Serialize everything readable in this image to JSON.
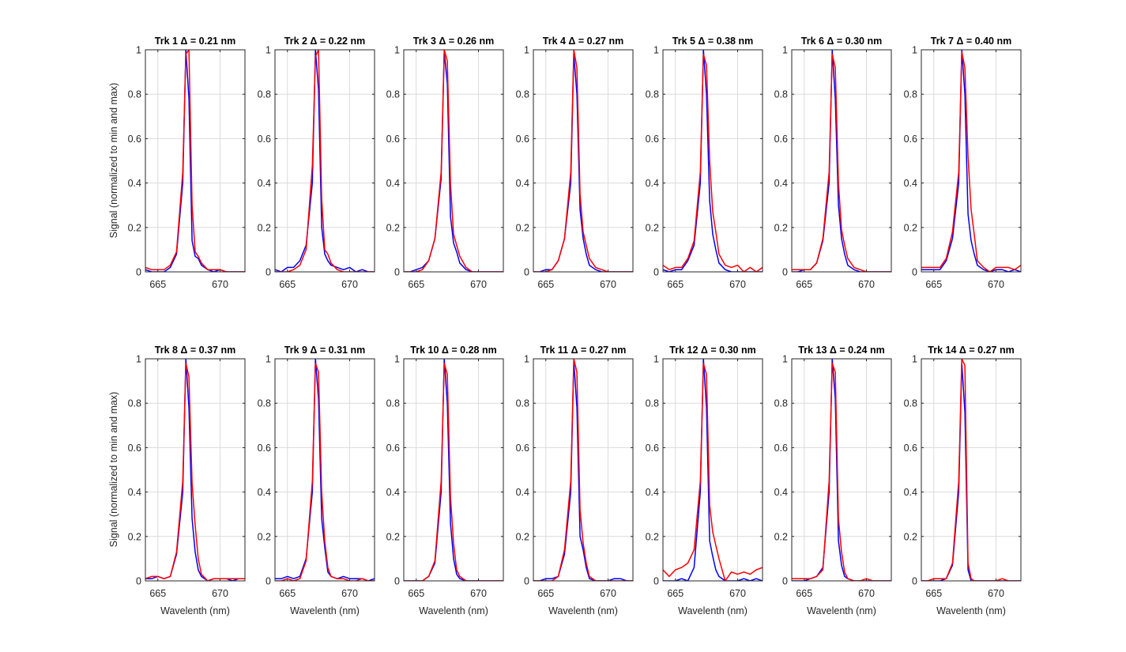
{
  "figure": {
    "ylabel": "Signal (normalized to min and max)",
    "xlabel": "Wavelenth (nm)"
  },
  "colors": {
    "blue": "#0000ff",
    "red": "#ff0000",
    "grid": "#dcdcdc",
    "axis": "#262626"
  },
  "chart_data": {
    "type": "line",
    "grid": true,
    "xlim": [
      664,
      672
    ],
    "ylim": [
      0,
      1
    ],
    "xticks": [
      665,
      670
    ],
    "yticks": [
      0,
      0.2,
      0.4,
      0.6,
      0.8,
      1
    ],
    "xticklabels": [
      "665",
      "670"
    ],
    "yticklabels": [
      "0",
      "0.2",
      "0.4",
      "0.6",
      "0.8",
      "1"
    ],
    "x": [
      664.0,
      664.5,
      665.0,
      665.5,
      666.0,
      666.5,
      667.0,
      667.25,
      667.5,
      667.75,
      668.0,
      668.25,
      668.5,
      669.0,
      669.5,
      670.0,
      670.5,
      671.0,
      671.5,
      672.0
    ],
    "panels": [
      {
        "title": "Trk 1 Δ = 0.21 nm",
        "blue": [
          0.01,
          0.0,
          0.0,
          0.0,
          0.02,
          0.08,
          0.4,
          1.0,
          0.78,
          0.14,
          0.07,
          0.06,
          0.03,
          0.01,
          0.0,
          0.01,
          0.0,
          0.0,
          0.0,
          0.0
        ],
        "red": [
          0.02,
          0.01,
          0.01,
          0.01,
          0.03,
          0.09,
          0.45,
          0.98,
          1.0,
          0.3,
          0.09,
          0.07,
          0.04,
          0.01,
          0.01,
          0.01,
          0.0,
          0.0,
          0.0,
          0.0
        ]
      },
      {
        "title": "Trk 2 Δ = 0.22 nm",
        "blue": [
          0.01,
          0.0,
          0.02,
          0.02,
          0.05,
          0.12,
          0.4,
          1.0,
          0.82,
          0.2,
          0.08,
          0.05,
          0.03,
          0.02,
          0.01,
          0.02,
          0.0,
          0.01,
          0.0,
          0.0
        ],
        "red": [
          0.0,
          0.0,
          0.0,
          0.01,
          0.03,
          0.1,
          0.48,
          0.97,
          1.0,
          0.33,
          0.1,
          0.08,
          0.04,
          0.01,
          0.0,
          0.0,
          0.0,
          0.0,
          0.0,
          0.0
        ]
      },
      {
        "title": "Trk 3 Δ = 0.26 nm",
        "blue": [
          0.0,
          0.0,
          0.01,
          0.02,
          0.05,
          0.15,
          0.42,
          0.99,
          0.85,
          0.25,
          0.13,
          0.09,
          0.04,
          0.01,
          0.0,
          0.0,
          0.0,
          0.0,
          0.0,
          0.0
        ],
        "red": [
          0.0,
          0.0,
          0.0,
          0.01,
          0.05,
          0.15,
          0.45,
          1.0,
          0.95,
          0.4,
          0.17,
          0.12,
          0.07,
          0.02,
          0.0,
          0.0,
          0.0,
          0.0,
          0.0,
          0.0
        ]
      },
      {
        "title": "Trk 4 Δ = 0.27 nm",
        "blue": [
          0.0,
          0.0,
          0.01,
          0.01,
          0.05,
          0.15,
          0.4,
          0.98,
          0.8,
          0.28,
          0.15,
          0.08,
          0.03,
          0.01,
          0.0,
          0.0,
          0.0,
          0.0,
          0.0,
          0.0
        ],
        "red": [
          0.0,
          0.0,
          0.0,
          0.01,
          0.05,
          0.15,
          0.45,
          1.0,
          0.92,
          0.35,
          0.18,
          0.12,
          0.06,
          0.02,
          0.01,
          0.0,
          0.0,
          0.0,
          0.0,
          0.0
        ]
      },
      {
        "title": "Trk 5 Δ = 0.38 nm",
        "blue": [
          0.01,
          0.0,
          0.01,
          0.01,
          0.05,
          0.12,
          0.4,
          1.0,
          0.8,
          0.32,
          0.17,
          0.1,
          0.04,
          0.01,
          0.0,
          0.0,
          0.0,
          0.0,
          0.0,
          0.0
        ],
        "red": [
          0.03,
          0.01,
          0.02,
          0.02,
          0.06,
          0.14,
          0.45,
          0.98,
          0.93,
          0.5,
          0.27,
          0.18,
          0.08,
          0.03,
          0.02,
          0.03,
          0.0,
          0.02,
          0.0,
          0.02
        ]
      },
      {
        "title": "Trk 6 Δ = 0.30 nm",
        "blue": [
          0.0,
          0.0,
          0.01,
          0.01,
          0.04,
          0.14,
          0.4,
          1.0,
          0.78,
          0.3,
          0.15,
          0.08,
          0.03,
          0.01,
          0.0,
          0.0,
          0.0,
          0.0,
          0.0,
          0.0
        ],
        "red": [
          0.01,
          0.01,
          0.01,
          0.01,
          0.04,
          0.15,
          0.45,
          0.98,
          0.92,
          0.4,
          0.19,
          0.12,
          0.06,
          0.02,
          0.01,
          0.0,
          0.0,
          0.0,
          0.0,
          0.0
        ]
      },
      {
        "title": "Trk 7 Δ = 0.40 nm",
        "blue": [
          0.01,
          0.01,
          0.01,
          0.01,
          0.05,
          0.15,
          0.4,
          1.0,
          0.8,
          0.26,
          0.14,
          0.08,
          0.03,
          0.01,
          0.0,
          0.01,
          0.01,
          0.0,
          0.01,
          0.0
        ],
        "red": [
          0.02,
          0.02,
          0.02,
          0.02,
          0.06,
          0.18,
          0.45,
          0.99,
          0.92,
          0.52,
          0.28,
          0.17,
          0.05,
          0.02,
          0.0,
          0.02,
          0.02,
          0.02,
          0.01,
          0.03
        ]
      },
      {
        "title": "Trk 8 Δ = 0.37 nm",
        "blue": [
          0.01,
          0.01,
          0.02,
          0.01,
          0.02,
          0.12,
          0.4,
          1.0,
          0.78,
          0.28,
          0.13,
          0.05,
          0.02,
          0.0,
          0.01,
          0.01,
          0.01,
          0.0,
          0.01,
          0.01
        ],
        "red": [
          0.01,
          0.02,
          0.02,
          0.01,
          0.02,
          0.13,
          0.45,
          0.98,
          0.92,
          0.44,
          0.25,
          0.1,
          0.03,
          0.0,
          0.01,
          0.01,
          0.01,
          0.01,
          0.01,
          0.01
        ]
      },
      {
        "title": "Trk 9 Δ = 0.31 nm",
        "blue": [
          0.01,
          0.01,
          0.02,
          0.01,
          0.02,
          0.1,
          0.4,
          1.0,
          0.82,
          0.28,
          0.15,
          0.04,
          0.02,
          0.01,
          0.02,
          0.01,
          0.01,
          0.01,
          0.0,
          0.01
        ],
        "red": [
          0.0,
          0.0,
          0.01,
          0.0,
          0.01,
          0.09,
          0.45,
          0.98,
          0.94,
          0.4,
          0.18,
          0.06,
          0.02,
          0.01,
          0.01,
          0.0,
          0.0,
          0.01,
          0.0,
          0.0
        ]
      },
      {
        "title": "Trk 10 Δ = 0.28 nm",
        "blue": [
          0.0,
          0.0,
          0.0,
          0.0,
          0.02,
          0.08,
          0.4,
          1.0,
          0.8,
          0.26,
          0.1,
          0.03,
          0.01,
          0.0,
          0.0,
          0.0,
          0.0,
          0.0,
          0.0,
          0.0
        ],
        "red": [
          0.0,
          0.0,
          0.0,
          0.0,
          0.02,
          0.09,
          0.45,
          0.98,
          0.93,
          0.38,
          0.17,
          0.05,
          0.02,
          0.0,
          0.0,
          0.0,
          0.0,
          0.0,
          0.0,
          0.0
        ]
      },
      {
        "title": "Trk 11 Δ = 0.27 nm",
        "blue": [
          0.0,
          0.0,
          0.01,
          0.01,
          0.02,
          0.12,
          0.4,
          0.99,
          0.78,
          0.2,
          0.14,
          0.06,
          0.01,
          0.0,
          0.0,
          0.0,
          0.01,
          0.01,
          0.0,
          0.0
        ],
        "red": [
          0.0,
          0.0,
          0.0,
          0.0,
          0.02,
          0.14,
          0.45,
          1.0,
          0.94,
          0.32,
          0.17,
          0.08,
          0.02,
          0.0,
          0.0,
          0.0,
          0.0,
          0.0,
          0.0,
          0.0
        ]
      },
      {
        "title": "Trk 12 Δ = 0.30 nm",
        "blue": [
          0.0,
          0.0,
          0.0,
          0.01,
          0.0,
          0.06,
          0.4,
          1.0,
          0.78,
          0.18,
          0.11,
          0.05,
          0.02,
          0.0,
          0.0,
          0.0,
          0.01,
          0.0,
          0.01,
          0.0
        ],
        "red": [
          0.05,
          0.02,
          0.05,
          0.06,
          0.08,
          0.14,
          0.45,
          0.98,
          0.93,
          0.34,
          0.22,
          0.16,
          0.1,
          0.0,
          0.04,
          0.03,
          0.04,
          0.03,
          0.05,
          0.06
        ]
      },
      {
        "title": "Trk 13 Δ = 0.24 nm",
        "blue": [
          0.0,
          0.0,
          0.0,
          0.01,
          0.02,
          0.06,
          0.4,
          1.0,
          0.82,
          0.18,
          0.07,
          0.02,
          0.01,
          0.0,
          0.0,
          0.0,
          0.0,
          0.0,
          0.0,
          0.0
        ],
        "red": [
          0.01,
          0.01,
          0.01,
          0.01,
          0.02,
          0.05,
          0.45,
          0.98,
          0.94,
          0.28,
          0.13,
          0.04,
          0.01,
          0.0,
          0.0,
          0.01,
          0.0,
          0.0,
          0.0,
          0.0
        ]
      },
      {
        "title": "Trk 14 Δ = 0.27 nm",
        "blue": [
          0.0,
          0.0,
          0.0,
          0.0,
          0.01,
          0.07,
          0.4,
          0.98,
          0.76,
          0.05,
          0.0,
          0.0,
          0.0,
          0.0,
          0.0,
          0.0,
          0.0,
          0.0,
          0.0,
          0.0
        ],
        "red": [
          0.0,
          0.0,
          0.01,
          0.01,
          0.01,
          0.08,
          0.45,
          1.0,
          0.97,
          0.08,
          0.01,
          0.0,
          0.0,
          0.0,
          0.0,
          0.0,
          0.01,
          0.0,
          0.0,
          0.0
        ]
      }
    ]
  }
}
